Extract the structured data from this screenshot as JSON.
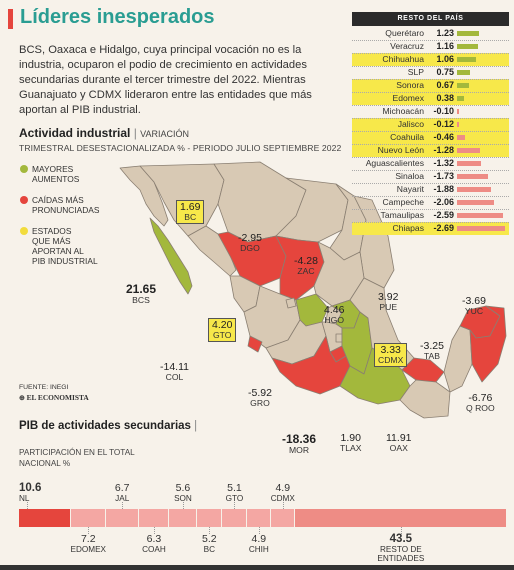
{
  "title": "Líderes inesperados",
  "intro": "BCS, Oaxaca e Hidalgo, cuya principal vocación no es la industria, ocuparon el podio de crecimiento en actividades secundarias durante el tercer trimestre del 2022. Mientras Guanajuato y CDMX lideraron entre las entidades que más aportan al PIB industrial.",
  "section1": {
    "title": "Actividad industrial",
    "variation": "VARIACIÓN",
    "subtitle": "TRIMESTRAL DESESTACIONALIZADA % - PERIODO JULIO SEPTIEMBRE 2022"
  },
  "legend": [
    {
      "label_line1": "MAYORES",
      "label_line2": "AUMENTOS",
      "label_line3": "",
      "color": "#a3b83c"
    },
    {
      "label_line1": "CAÍDAS MÁS",
      "label_line2": "PRONUNCIADAS",
      "label_line3": "",
      "color": "#e5453d"
    },
    {
      "label_line1": "ESTADOS",
      "label_line2": "QUE MÁS",
      "label_line3": "APORTAN AL",
      "label_line4": "PIB INDUSTRIAL",
      "color": "#f2dc3c"
    }
  ],
  "colors": {
    "green": "#a3b83c",
    "red": "#e5453d",
    "yellow": "#f7e84a",
    "beige": "#d8c9b4",
    "map_line": "#8a7f72",
    "pink": "#f2a3a0",
    "salmon": "#ee8c85",
    "teal": "#2a9d92"
  },
  "map_labels": {
    "bc": {
      "value": "1.69",
      "abbr": "BC"
    },
    "bcs": {
      "value": "21.65",
      "abbr": "BCS"
    },
    "dgo": {
      "value": "-2.95",
      "abbr": "DGO"
    },
    "zac": {
      "value": "-4.28",
      "abbr": "ZAC"
    },
    "hgo": {
      "value": "4.46",
      "abbr": "HGO"
    },
    "pue": {
      "value": "3.92",
      "abbr": "PUE"
    },
    "yuc": {
      "value": "-3.69",
      "abbr": "YUC"
    },
    "gto": {
      "value": "4.20",
      "abbr": "GTO"
    },
    "cdmx": {
      "value": "3.33",
      "abbr": "CDMX"
    },
    "tab": {
      "value": "-3.25",
      "abbr": "TAB"
    },
    "col": {
      "value": "-14.11",
      "abbr": "COL"
    },
    "gro": {
      "value": "-5.92",
      "abbr": "GRO"
    },
    "qroo": {
      "value": "-6.76",
      "abbr": "Q ROO"
    },
    "mor": {
      "value": "-18.36",
      "abbr": "MOR"
    },
    "tlax": {
      "value": "1.90",
      "abbr": "TLAX"
    },
    "oax": {
      "value": "11.91",
      "abbr": "OAX"
    }
  },
  "source": {
    "label": "FUENTE: INEGI",
    "brand": "EL ECONOMISTA"
  },
  "chart_data": [
    {
      "type": "bar",
      "title": "RESTO DEL PAÍS",
      "categories": [
        "Querétaro",
        "Veracruz",
        "Chihuahua",
        "SLP",
        "Sonora",
        "Edomex",
        "Michoacán",
        "Jalisco",
        "Coahuila",
        "Nuevo León",
        "Aguascalientes",
        "Sinaloa",
        "Nayarit",
        "Campeche",
        "Tamaulipas",
        "Chiapas"
      ],
      "values": [
        1.23,
        1.16,
        1.06,
        0.75,
        0.67,
        0.38,
        -0.1,
        -0.12,
        -0.46,
        -1.28,
        -1.32,
        -1.73,
        -1.88,
        -2.06,
        -2.59,
        -2.69
      ],
      "labels": [
        "1.23",
        "1.16",
        "1.06",
        "0.75",
        "0.67",
        "0.38",
        "-0.10",
        "-0.12",
        "-0.46",
        "-1.28",
        "-1.32",
        "-1.73",
        "-1.88",
        "-2.06",
        "-2.59",
        "-2.69"
      ],
      "highlighted": [
        "Chihuahua",
        "Sonora",
        "Edomex",
        "Jalisco",
        "Coahuila",
        "Nuevo León",
        "Chiapas"
      ]
    },
    {
      "type": "bar",
      "title": "PIB de actividades secundarias",
      "subtitle": "PARTICIPACIÓN EN EL TOTAL NACIONAL %",
      "categories": [
        "NL",
        "EDOMEX",
        "JAL",
        "COAH",
        "SON",
        "BC",
        "GTO",
        "CHIH",
        "CDMX",
        "RESTO DE ENTIDADES"
      ],
      "values": [
        10.6,
        7.2,
        6.7,
        6.3,
        5.6,
        5.2,
        5.1,
        4.9,
        4.9,
        43.5
      ],
      "labels": [
        "10.6",
        "7.2",
        "6.7",
        "6.3",
        "5.6",
        "5.2",
        "5.1",
        "4.9",
        "4.9",
        "43.5"
      ]
    }
  ]
}
